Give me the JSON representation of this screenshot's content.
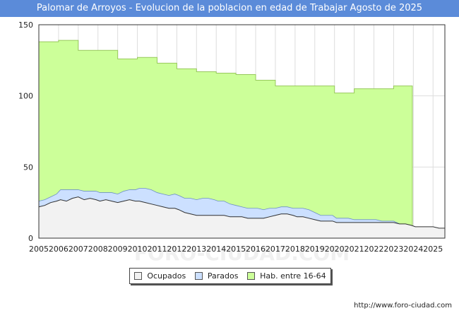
{
  "header": {
    "title": "Palomar de Arroyos - Evolucion de la poblacion en edad de Trabajar Agosto de 2025"
  },
  "footer": {
    "url": "http://www.foro-ciudad.com"
  },
  "watermark": "FORO-CIUDAD.COM",
  "colors": {
    "title_bg": "#5b8bd9",
    "ocupados": "#f2f2f2",
    "parados": "#cce0ff",
    "habitantes": "#ccff99",
    "habitantes_line": "#97c95b"
  },
  "chart_data": {
    "type": "area",
    "title": "Palomar de Arroyos - Evolucion de la poblacion en edad de Trabajar Agosto de 2025",
    "xlabel": "",
    "ylabel": "",
    "xlim": [
      2005,
      2025.6
    ],
    "ylim": [
      0,
      150
    ],
    "yticks": [
      0,
      50,
      100,
      150
    ],
    "xticks": [
      2005,
      2006,
      2007,
      2008,
      2009,
      2010,
      2011,
      2012,
      2013,
      2014,
      2015,
      2016,
      2017,
      2018,
      2019,
      2020,
      2021,
      2022,
      2023,
      2024,
      2025
    ],
    "grid": true,
    "legend_position": "bottom-center",
    "series": [
      {
        "name": "Ocupados",
        "color": "#f2f2f2",
        "x": [
          2005.0,
          2005.3,
          2005.6,
          2005.9,
          2006.1,
          2006.4,
          2006.7,
          2007.0,
          2007.3,
          2007.6,
          2007.9,
          2008.1,
          2008.4,
          2008.7,
          2009.0,
          2009.3,
          2009.6,
          2009.9,
          2010.1,
          2010.4,
          2010.7,
          2011.0,
          2011.3,
          2011.6,
          2011.9,
          2012.1,
          2012.4,
          2012.7,
          2013.0,
          2013.3,
          2013.6,
          2013.9,
          2014.1,
          2014.4,
          2014.7,
          2015.0,
          2015.3,
          2015.6,
          2015.9,
          2016.1,
          2016.4,
          2016.7,
          2017.0,
          2017.3,
          2017.6,
          2017.9,
          2018.1,
          2018.4,
          2018.7,
          2019.0,
          2019.3,
          2019.6,
          2019.9,
          2020.1,
          2020.4,
          2020.7,
          2021.0,
          2021.3,
          2021.6,
          2021.9,
          2022.1,
          2022.4,
          2022.7,
          2023.0,
          2023.3,
          2023.6,
          2023.9,
          2024.1,
          2024.4,
          2024.7,
          2025.0,
          2025.3,
          2025.6
        ],
        "values": [
          22,
          23,
          25,
          26,
          27,
          26,
          28,
          29,
          27,
          28,
          27,
          26,
          27,
          26,
          25,
          26,
          27,
          26,
          26,
          25,
          24,
          23,
          22,
          21,
          21,
          20,
          18,
          17,
          16,
          16,
          16,
          16,
          16,
          16,
          15,
          15,
          15,
          14,
          14,
          14,
          14,
          15,
          16,
          17,
          17,
          16,
          15,
          15,
          14,
          13,
          12,
          12,
          12,
          11,
          11,
          11,
          11,
          11,
          11,
          11,
          11,
          11,
          11,
          11,
          10,
          10,
          9,
          8,
          8,
          8,
          8,
          7,
          7
        ]
      },
      {
        "name": "Parados",
        "color": "#cce0ff",
        "x": [
          2005.0,
          2005.3,
          2005.6,
          2005.9,
          2006.1,
          2006.4,
          2006.7,
          2007.0,
          2007.3,
          2007.6,
          2007.9,
          2008.1,
          2008.4,
          2008.7,
          2009.0,
          2009.3,
          2009.6,
          2009.9,
          2010.1,
          2010.4,
          2010.7,
          2011.0,
          2011.3,
          2011.6,
          2011.9,
          2012.1,
          2012.4,
          2012.7,
          2013.0,
          2013.3,
          2013.6,
          2013.9,
          2014.1,
          2014.4,
          2014.7,
          2015.0,
          2015.3,
          2015.6,
          2015.9,
          2016.1,
          2016.4,
          2016.7,
          2017.0,
          2017.3,
          2017.6,
          2017.9,
          2018.1,
          2018.4,
          2018.7,
          2019.0,
          2019.3,
          2019.6,
          2019.9,
          2020.1,
          2020.4,
          2020.7,
          2021.0,
          2021.3,
          2021.6,
          2021.9,
          2022.1,
          2022.4,
          2022.7,
          2023.0,
          2023.3,
          2023.6,
          2023.9,
          2024.1,
          2024.4,
          2024.7,
          2025.0,
          2025.3,
          2025.6
        ],
        "values": [
          4,
          4,
          4,
          5,
          7,
          8,
          6,
          5,
          6,
          5,
          6,
          6,
          5,
          6,
          6,
          7,
          7,
          8,
          9,
          10,
          10,
          9,
          9,
          9,
          10,
          10,
          10,
          11,
          11,
          12,
          12,
          11,
          10,
          10,
          9,
          8,
          7,
          7,
          7,
          7,
          6,
          6,
          5,
          5,
          5,
          5,
          6,
          6,
          6,
          5,
          4,
          4,
          4,
          3,
          3,
          3,
          2,
          2,
          2,
          2,
          2,
          1,
          1,
          1,
          0,
          0,
          0,
          0,
          0,
          0,
          0,
          0,
          0
        ]
      },
      {
        "name": "Hab. entre 16-64",
        "color": "#ccff99",
        "x": [
          2005.0,
          2006.0,
          2007.0,
          2008.0,
          2009.0,
          2010.0,
          2011.0,
          2012.0,
          2013.0,
          2014.0,
          2015.0,
          2016.0,
          2017.0,
          2018.0,
          2019.0,
          2020.0,
          2021.0,
          2022.0,
          2023.0
        ],
        "values": [
          138,
          139,
          132,
          132,
          126,
          127,
          123,
          119,
          117,
          116,
          115,
          111,
          107,
          107,
          107,
          102,
          105,
          105,
          107
        ]
      }
    ]
  },
  "legend": {
    "items": [
      {
        "label": "Ocupados",
        "color": "#f2f2f2"
      },
      {
        "label": "Parados",
        "color": "#cce0ff"
      },
      {
        "label": "Hab. entre 16-64",
        "color": "#ccff99"
      }
    ]
  }
}
